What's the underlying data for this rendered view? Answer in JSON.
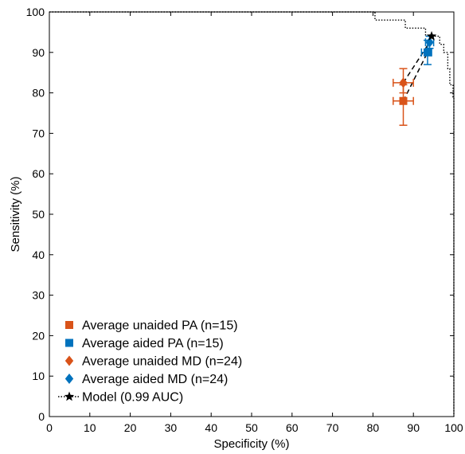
{
  "chart_data": {
    "type": "line",
    "xlabel": "Specificity (%)",
    "ylabel": "Sensitivity (%)",
    "xlim": [
      0,
      100
    ],
    "ylim": [
      0,
      100
    ],
    "xticks": [
      0,
      10,
      20,
      30,
      40,
      50,
      60,
      70,
      80,
      90,
      100
    ],
    "yticks": [
      0,
      10,
      20,
      30,
      40,
      50,
      60,
      70,
      80,
      90,
      100
    ],
    "grid": false,
    "legend_position": "bottom-left",
    "colors": {
      "unaided": "#d95319",
      "aided": "#0072bd",
      "model": "#000000"
    },
    "series": [
      {
        "name": "Average unaided PA (n=15)",
        "marker": "square",
        "color": "#d95319",
        "points": [
          {
            "x": 87.5,
            "y": 78,
            "xerr": [
              85,
              90
            ],
            "yerr": [
              72,
              82
            ]
          }
        ]
      },
      {
        "name": "Average aided PA (n=15)",
        "marker": "square",
        "color": "#0072bd",
        "points": [
          {
            "x": 93.5,
            "y": 90,
            "xerr": [
              92,
              94.5
            ],
            "yerr": [
              87,
              93
            ]
          }
        ]
      },
      {
        "name": "Average unaided MD (n=24)",
        "marker": "diamond",
        "color": "#d95319",
        "points": [
          {
            "x": 87.5,
            "y": 82.5,
            "xerr": [
              85,
              90
            ],
            "yerr": [
              80,
              86
            ]
          }
        ]
      },
      {
        "name": "Average aided MD (n=24)",
        "marker": "diamond",
        "color": "#0072bd",
        "points": [
          {
            "x": 94,
            "y": 92.5,
            "xerr": [
              93,
              95
            ],
            "yerr": [
              91,
              94
            ]
          }
        ]
      },
      {
        "name": "Model (0.99 AUC)",
        "marker": "star",
        "color": "#000000",
        "points": [
          {
            "x": 94.5,
            "y": 94
          }
        ]
      }
    ],
    "connectors": [
      {
        "from": [
          87.5,
          78
        ],
        "to": [
          93.5,
          90
        ]
      },
      {
        "from": [
          87.5,
          82.5
        ],
        "to": [
          94,
          92.5
        ]
      }
    ],
    "roc_curve": [
      [
        0,
        100
      ],
      [
        80.5,
        100
      ],
      [
        80.5,
        98
      ],
      [
        88,
        98
      ],
      [
        88,
        96
      ],
      [
        93,
        96
      ],
      [
        93,
        94
      ],
      [
        96.5,
        94
      ],
      [
        96.5,
        92
      ],
      [
        97.5,
        92
      ],
      [
        97.5,
        90
      ],
      [
        98.5,
        90
      ],
      [
        98.5,
        86
      ],
      [
        99,
        86
      ],
      [
        99,
        82
      ],
      [
        99.8,
        82
      ],
      [
        99.8,
        79
      ],
      [
        100,
        79
      ],
      [
        100,
        0
      ]
    ]
  }
}
